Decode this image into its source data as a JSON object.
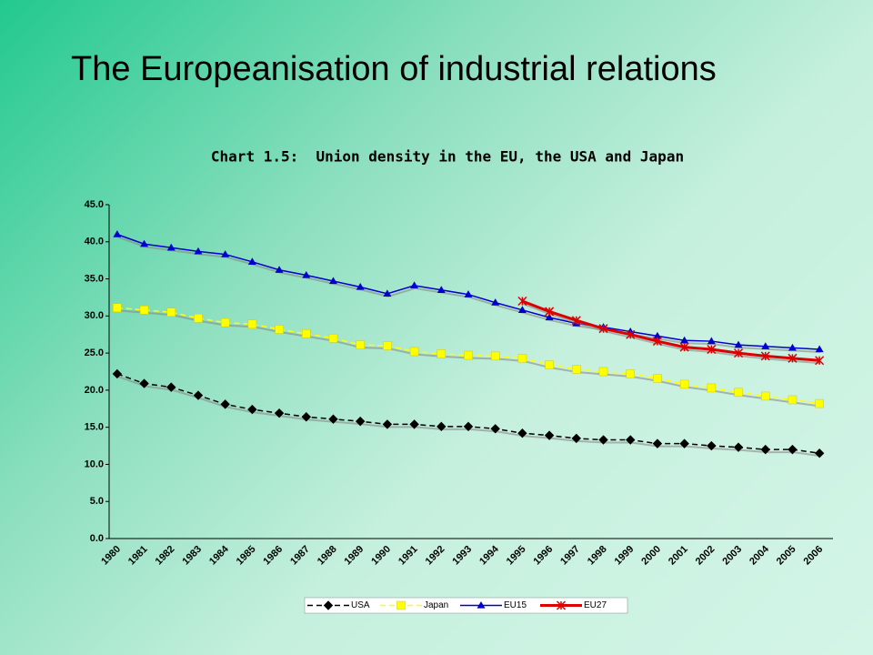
{
  "slide": {
    "title": "The Europeanisation of industrial relations"
  },
  "chart_data": {
    "type": "line",
    "title": "Chart 1.5:  Union density in the EU, the USA and Japan",
    "categories": [
      "1980",
      "1981",
      "1982",
      "1983",
      "1984",
      "1985",
      "1986",
      "1987",
      "1988",
      "1989",
      "1990",
      "1991",
      "1992",
      "1993",
      "1994",
      "1995",
      "1996",
      "1997",
      "1998",
      "1999",
      "2000",
      "2001",
      "2002",
      "2003",
      "2004",
      "2005",
      "2006"
    ],
    "series": [
      {
        "name": "USA",
        "color": "#000000",
        "dashed": true,
        "marker": "diamond",
        "values": [
          22.2,
          20.9,
          20.4,
          19.3,
          18.1,
          17.4,
          16.9,
          16.4,
          16.1,
          15.8,
          15.4,
          15.4,
          15.1,
          15.1,
          14.8,
          14.2,
          13.9,
          13.5,
          13.3,
          13.3,
          12.8,
          12.8,
          12.5,
          12.3,
          12.0,
          12.0,
          11.5
        ]
      },
      {
        "name": "Japan",
        "color": "#ffff00",
        "dashed": true,
        "marker": "square",
        "values": [
          31.1,
          30.8,
          30.5,
          29.7,
          29.1,
          28.9,
          28.2,
          27.6,
          27.0,
          26.1,
          26.0,
          25.2,
          24.9,
          24.7,
          24.6,
          24.3,
          23.4,
          22.8,
          22.5,
          22.2,
          21.6,
          20.8,
          20.3,
          19.7,
          19.2,
          18.7,
          18.2
        ]
      },
      {
        "name": "EU15",
        "color": "#0000cc",
        "dashed": false,
        "marker": "triangle",
        "values": [
          41.0,
          39.7,
          39.2,
          38.7,
          38.3,
          37.3,
          36.2,
          35.5,
          34.7,
          33.9,
          33.0,
          34.1,
          33.5,
          32.9,
          31.8,
          30.8,
          29.8,
          29.0,
          28.5,
          27.9,
          27.3,
          26.7,
          26.6,
          26.1,
          25.9,
          25.7,
          25.5
        ]
      },
      {
        "name": "EU27",
        "color": "#dd0000",
        "dashed": false,
        "marker": "star",
        "values": [
          null,
          null,
          null,
          null,
          null,
          null,
          null,
          null,
          null,
          null,
          null,
          null,
          null,
          null,
          null,
          32.0,
          30.6,
          29.4,
          28.3,
          27.5,
          26.6,
          25.8,
          25.5,
          25.0,
          24.6,
          24.3,
          24.0
        ]
      }
    ],
    "ylim": [
      0,
      45
    ],
    "yticks": [
      {
        "value": 0,
        "label": "0.0"
      },
      {
        "value": 5,
        "label": "5.0"
      },
      {
        "value": 10,
        "label": "10.0"
      },
      {
        "value": 15,
        "label": "15.0"
      },
      {
        "value": 20,
        "label": "20.0"
      },
      {
        "value": 25,
        "label": "25.0"
      },
      {
        "value": 30,
        "label": "30.0"
      },
      {
        "value": 35,
        "label": "35.0"
      },
      {
        "value": 40,
        "label": "40.0"
      },
      {
        "value": 45,
        "label": "45.0"
      }
    ],
    "grid": false,
    "legend": "bottom"
  }
}
